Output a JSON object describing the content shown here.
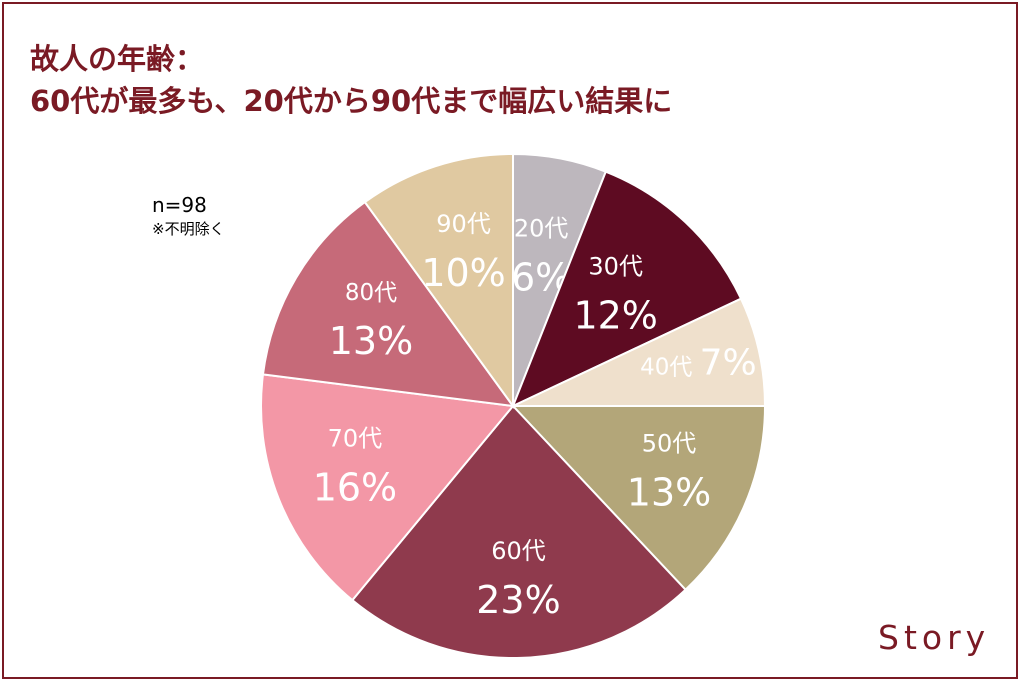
{
  "header": {
    "title_line1": "故人の年齢：",
    "title_line2": "60代が最多も、20代から90代まで幅広い結果に"
  },
  "note": {
    "sample_size": "n=98",
    "exclusion": "※不明除く"
  },
  "brand": {
    "logo_text": "Story"
  },
  "colors": {
    "title": "#7a1a24",
    "frame": "#7a1a24"
  },
  "chart_data": {
    "type": "pie",
    "title": "",
    "start": "top",
    "direction": "clockwise",
    "slices": [
      {
        "label": "20代",
        "value": 6,
        "value_label": "6%",
        "color": "#bdb7bd"
      },
      {
        "label": "30代",
        "value": 12,
        "value_label": "12%",
        "color": "#5e0b22"
      },
      {
        "label": "40代",
        "value": 7,
        "value_label": "7%",
        "color": "#efe0cc"
      },
      {
        "label": "50代",
        "value": 13,
        "value_label": "13%",
        "color": "#b3a679"
      },
      {
        "label": "60代",
        "value": 23,
        "value_label": "23%",
        "color": "#8f3a4d"
      },
      {
        "label": "70代",
        "value": 16,
        "value_label": "16%",
        "color": "#f397a6"
      },
      {
        "label": "80代",
        "value": 13,
        "value_label": "13%",
        "color": "#c66a79"
      },
      {
        "label": "90代",
        "value": 10,
        "value_label": "10%",
        "color": "#e0c9a1"
      }
    ]
  }
}
